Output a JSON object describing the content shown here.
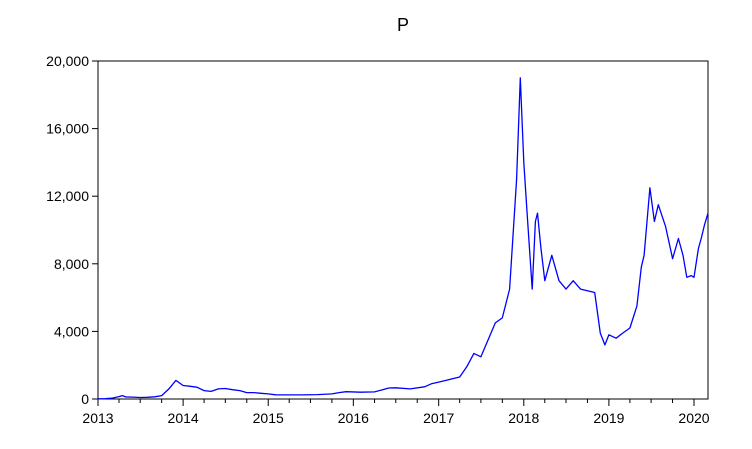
{
  "chart_data": {
    "type": "line",
    "title": "P",
    "xlabel": "",
    "ylabel": "",
    "xlim": [
      "2013-01-01",
      "2020-03-01"
    ],
    "ylim": [
      0,
      20000
    ],
    "x_ticks": [
      "2013",
      "2014",
      "2015",
      "2016",
      "2017",
      "2018",
      "2019",
      "2020"
    ],
    "y_ticks": [
      "0",
      "4,000",
      "8,000",
      "12,000",
      "16,000",
      "20,000"
    ],
    "grid": false,
    "legend": "none",
    "line_color": "#0000ff",
    "series": [
      {
        "x": [
          "2013-01-01",
          "2013-02-01",
          "2013-03-01",
          "2013-04-01",
          "2013-04-15",
          "2013-05-01",
          "2013-06-01",
          "2013-07-01",
          "2013-08-01",
          "2013-09-01",
          "2013-10-01",
          "2013-11-01",
          "2013-12-01",
          "2014-01-01",
          "2014-02-01",
          "2014-03-01",
          "2014-04-01",
          "2014-05-01",
          "2014-06-01",
          "2014-07-01",
          "2014-08-01",
          "2014-09-01",
          "2014-10-01",
          "2014-11-01",
          "2014-12-01",
          "2015-01-01",
          "2015-02-01",
          "2015-04-01",
          "2015-06-01",
          "2015-08-01",
          "2015-10-01",
          "2015-11-01",
          "2015-12-01",
          "2016-02-01",
          "2016-04-01",
          "2016-06-01",
          "2016-07-01",
          "2016-09-01",
          "2016-11-01",
          "2016-12-01",
          "2017-01-01",
          "2017-02-01",
          "2017-03-01",
          "2017-04-01",
          "2017-05-01",
          "2017-06-01",
          "2017-07-01",
          "2017-08-01",
          "2017-09-01",
          "2017-10-01",
          "2017-11-01",
          "2017-12-01",
          "2017-12-17",
          "2018-01-01",
          "2018-01-15",
          "2018-02-06",
          "2018-02-20",
          "2018-03-01",
          "2018-03-15",
          "2018-04-01",
          "2018-05-01",
          "2018-06-01",
          "2018-07-01",
          "2018-08-01",
          "2018-09-01",
          "2018-10-01",
          "2018-11-01",
          "2018-11-25",
          "2018-12-15",
          "2019-01-01",
          "2019-02-01",
          "2019-03-01",
          "2019-04-01",
          "2019-05-01",
          "2019-05-20",
          "2019-06-01",
          "2019-06-26",
          "2019-07-15",
          "2019-08-01",
          "2019-09-01",
          "2019-10-01",
          "2019-10-26",
          "2019-11-15",
          "2019-12-01",
          "2019-12-20",
          "2020-01-01",
          "2020-01-20",
          "2020-02-01",
          "2020-02-15",
          "2020-03-01"
        ],
        "y": [
          13,
          20,
          45,
          140,
          200,
          120,
          110,
          90,
          100,
          130,
          200,
          600,
          1100,
          800,
          750,
          700,
          500,
          450,
          600,
          620,
          550,
          500,
          380,
          380,
          340,
          300,
          250,
          240,
          240,
          260,
          300,
          380,
          430,
          400,
          420,
          650,
          660,
          600,
          720,
          900,
          1000,
          1100,
          1200,
          1300,
          1900,
          2700,
          2500,
          3500,
          4500,
          4800,
          6500,
          13000,
          19000,
          14000,
          11000,
          6500,
          10500,
          11000,
          9000,
          7000,
          8500,
          7000,
          6500,
          7000,
          6500,
          6400,
          6300,
          3900,
          3200,
          3800,
          3600,
          3900,
          4200,
          5500,
          7800,
          8500,
          12500,
          10500,
          11500,
          10200,
          8300,
          9500,
          8500,
          7200,
          7300,
          7200,
          8900,
          9500,
          10300,
          11000
        ]
      }
    ]
  }
}
